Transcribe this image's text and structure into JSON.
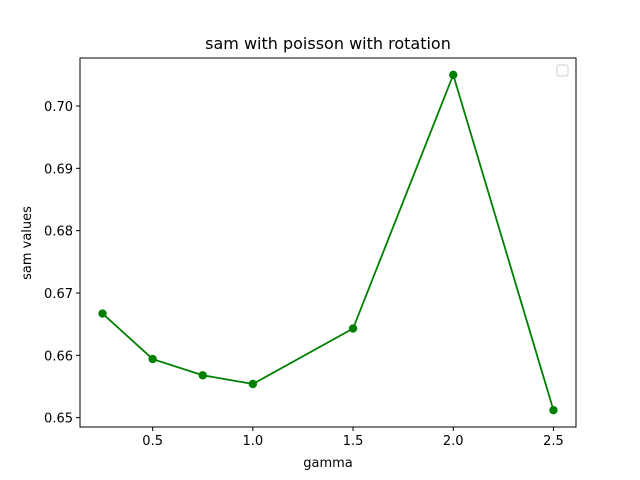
{
  "chart_data": {
    "type": "line",
    "title": "sam with poisson with rotation",
    "xlabel": "gamma",
    "ylabel": "sam values",
    "x": [
      0.25,
      0.5,
      0.75,
      1.0,
      1.5,
      2.0,
      2.5
    ],
    "series": [
      {
        "values": [
          0.6667,
          0.6594,
          0.6568,
          0.6554,
          0.6643,
          0.705,
          0.6512
        ],
        "color": "#008000",
        "marker": "circle"
      }
    ],
    "xlim": [
      0.1375,
      2.6125
    ],
    "ylim": [
      0.6485,
      0.7077
    ],
    "xticks": [
      0.5,
      1.0,
      1.5,
      2.0,
      2.5
    ],
    "xtick_labels": [
      "0.5",
      "1.0",
      "1.5",
      "2.0",
      "2.5"
    ],
    "yticks": [
      0.65,
      0.66,
      0.67,
      0.68,
      0.69,
      0.7
    ],
    "ytick_labels": [
      "0.65",
      "0.66",
      "0.67",
      "0.68",
      "0.69",
      "0.70"
    ],
    "grid": false,
    "legend": "upper right (empty)"
  }
}
